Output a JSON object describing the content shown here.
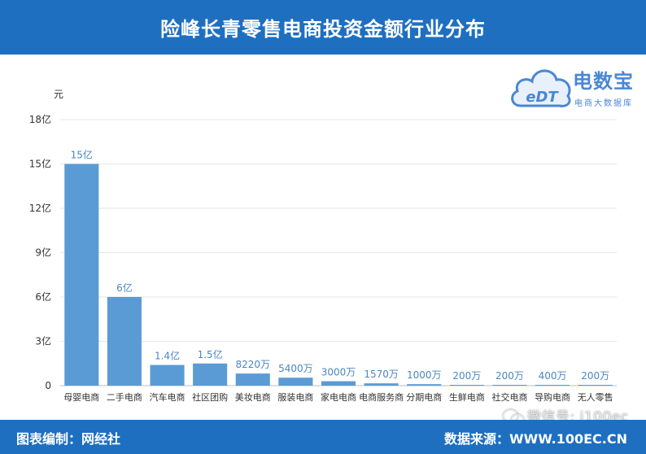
{
  "header": {
    "title": "险峰长青零售电商投资金额行业分布"
  },
  "logo": {
    "mark": "eDT",
    "name": "电数宝",
    "tagline": "电商大数据库"
  },
  "chart_data": {
    "type": "bar",
    "unit": "元",
    "ylim": [
      0,
      18
    ],
    "yticks": [
      "0",
      "3亿",
      "6亿",
      "9亿",
      "12亿",
      "15亿",
      "18亿"
    ],
    "grid": true,
    "categories": [
      "母婴电商",
      "二手电商",
      "汽车电商",
      "社区团购",
      "美妆电商",
      "服装电商",
      "家电电商",
      "电商服务商",
      "分期电商",
      "生鲜电商",
      "社交电商",
      "导购电商",
      "无人零售"
    ],
    "values": [
      15,
      6,
      1.4,
      1.5,
      0.822,
      0.54,
      0.3,
      0.157,
      0.1,
      0.02,
      0.02,
      0.04,
      0.02
    ],
    "value_labels": [
      "15亿",
      "6亿",
      "1.4亿",
      "1.5亿",
      "8220万",
      "5400万",
      "3000万",
      "1570万",
      "1000万",
      "200万",
      "200万",
      "400万",
      "200万"
    ],
    "bar_color": "#5b9bd5",
    "label_color": "#4a86c5"
  },
  "footer": {
    "left": "图表编制：网经社",
    "right": "数据来源：WWW.100EC.CN"
  },
  "watermark": {
    "text": "微信号: i100ec"
  },
  "colors": {
    "header_bg": "#1e6fc0",
    "grid": "#e6e6e6",
    "axis_text": "#333333"
  }
}
